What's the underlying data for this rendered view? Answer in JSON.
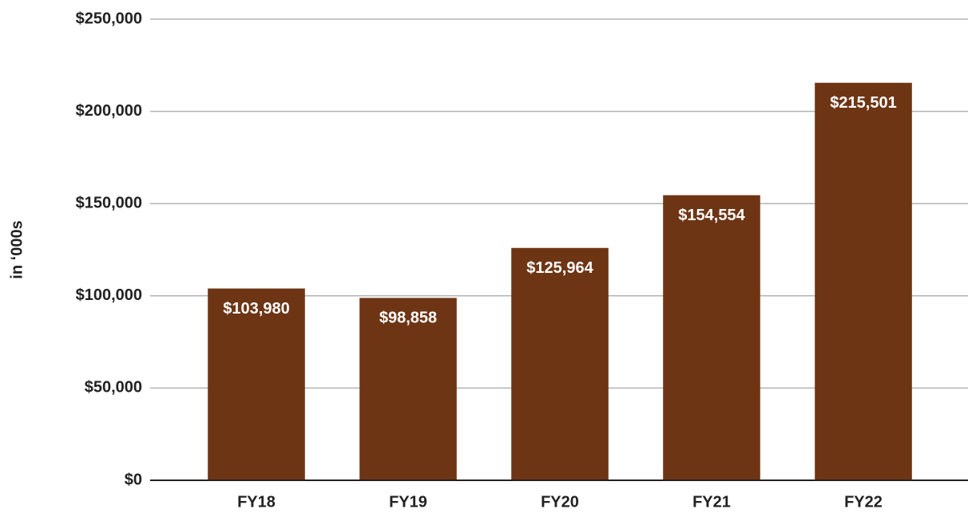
{
  "chart_data": {
    "type": "bar",
    "y_label": "in ‘000s",
    "categories": [
      "FY18",
      "FY19",
      "FY20",
      "FY21",
      "FY22"
    ],
    "values": [
      103980,
      98858,
      125964,
      154554,
      215501
    ],
    "value_labels": [
      "$103,980",
      "$98,858",
      "$125,964",
      "$154,554",
      "$215,501"
    ],
    "color": "#6e3515",
    "ylim": [
      0,
      250000
    ],
    "yticks": [
      {
        "value": 0,
        "label": "$0"
      },
      {
        "value": 50000,
        "label": "$50,000"
      },
      {
        "value": 100000,
        "label": "$100,000"
      },
      {
        "value": 150000,
        "label": "$150,000"
      },
      {
        "value": 200000,
        "label": "$200,000"
      },
      {
        "value": 250000,
        "label": "$250,000"
      }
    ],
    "grid": true
  }
}
